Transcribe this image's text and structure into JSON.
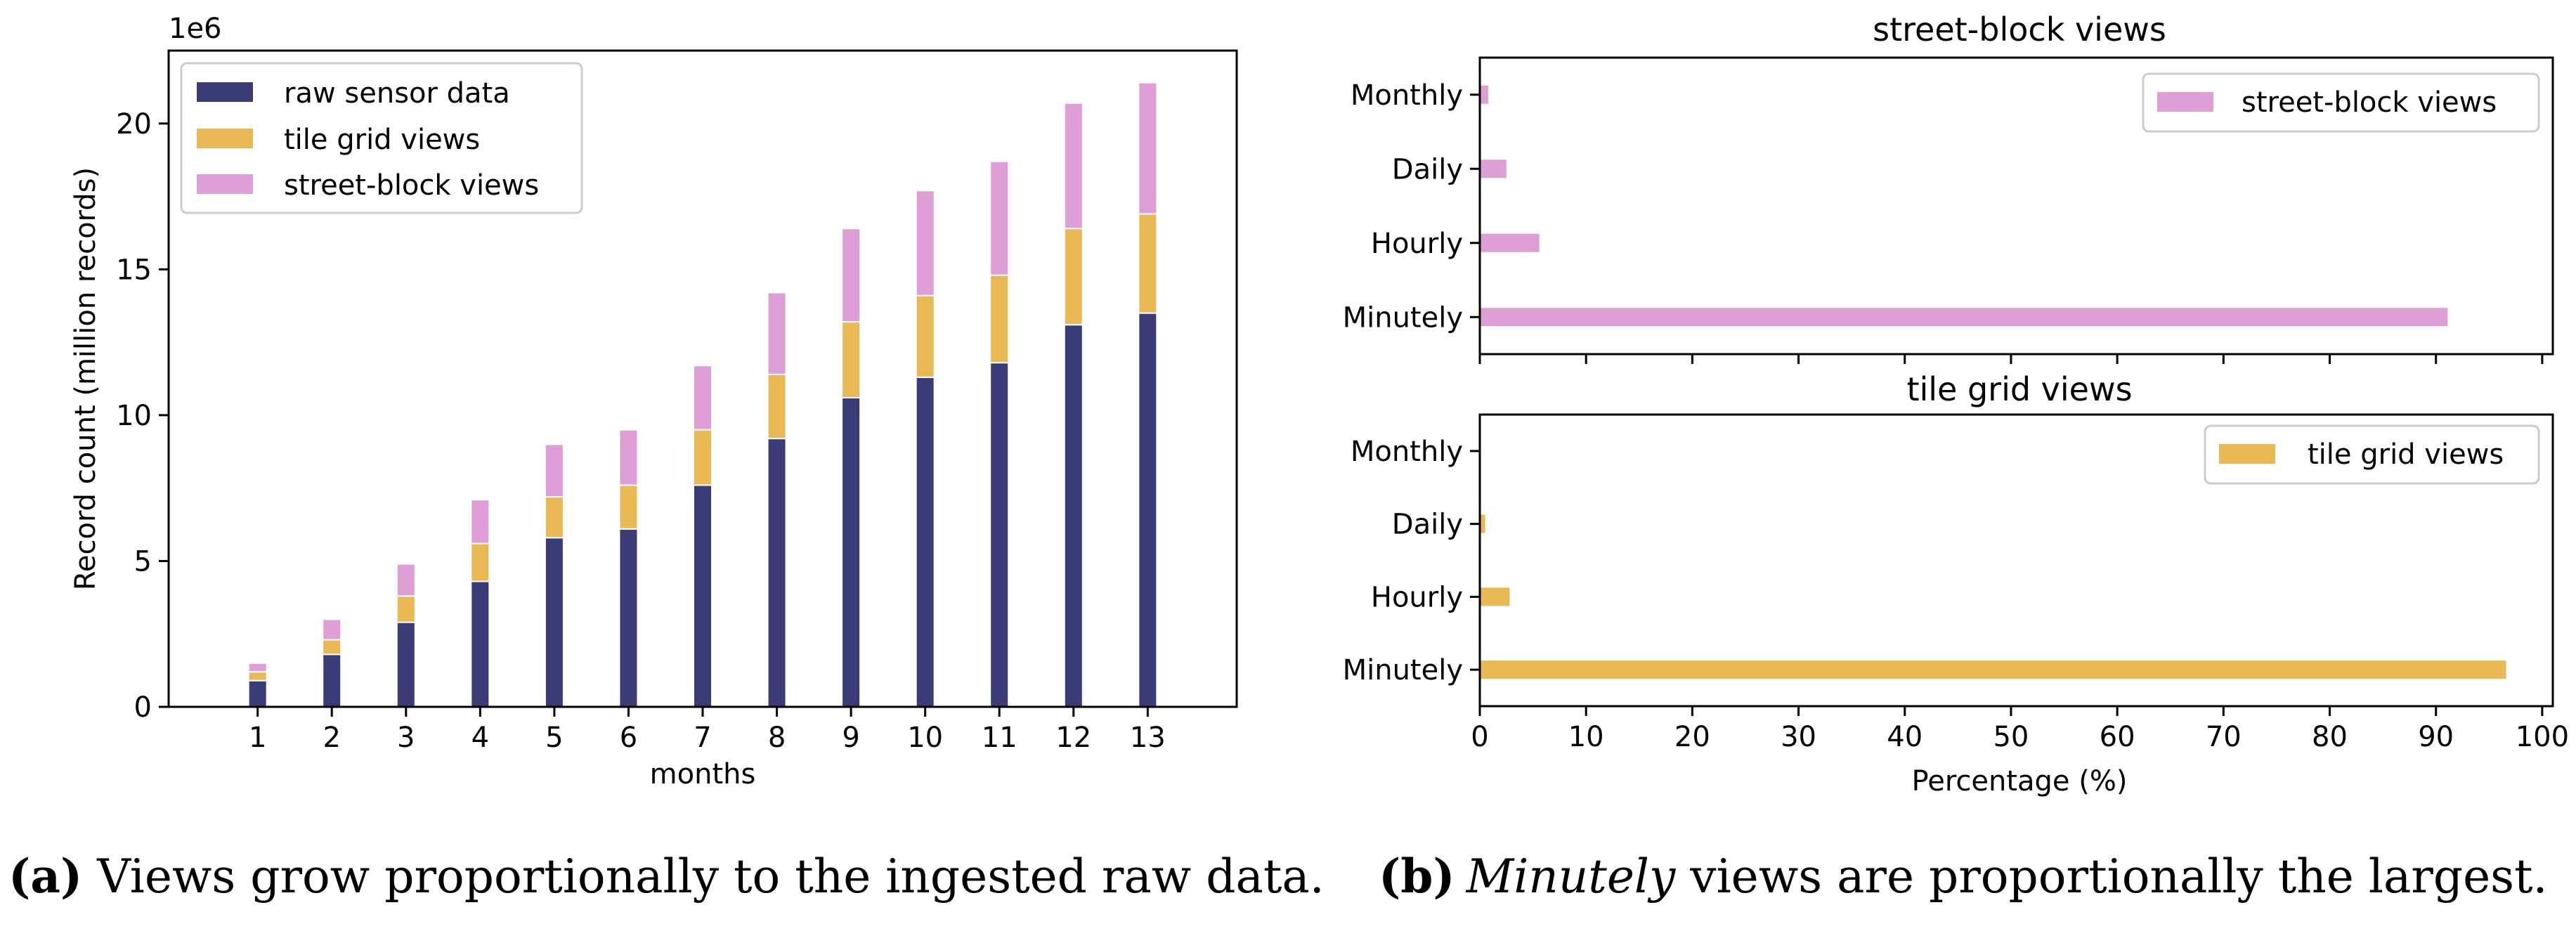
{
  "chart_data": [
    {
      "type": "bar",
      "stacked": true,
      "title": "",
      "xlabel": "months",
      "ylabel": "Record count (million records)",
      "y_offset_label": "1e6",
      "ylim": [
        0,
        22.5
      ],
      "yticks": [
        0,
        5,
        10,
        15,
        20
      ],
      "categories": [
        "1",
        "2",
        "3",
        "4",
        "5",
        "6",
        "7",
        "8",
        "9",
        "10",
        "11",
        "12",
        "13"
      ],
      "legend_position": "upper-left",
      "series": [
        {
          "name": "raw sensor data",
          "color": "#3b3b75",
          "values": [
            0.9,
            1.8,
            2.9,
            4.3,
            5.8,
            6.1,
            7.6,
            9.2,
            10.6,
            11.3,
            11.8,
            13.1,
            13.5
          ]
        },
        {
          "name": "tile grid views",
          "color": "#e8b955",
          "values": [
            0.3,
            0.5,
            0.9,
            1.3,
            1.4,
            1.5,
            1.9,
            2.2,
            2.6,
            2.8,
            3.0,
            3.3,
            3.4
          ]
        },
        {
          "name": "street-block views",
          "color": "#dd9fd6",
          "values": [
            0.3,
            0.7,
            1.1,
            1.5,
            1.8,
            1.9,
            2.2,
            2.8,
            3.2,
            3.6,
            3.9,
            4.3,
            4.5
          ]
        }
      ],
      "caption_bold": "(a)",
      "caption_text": " Views grow proportionally to the ingested raw data."
    },
    {
      "type": "bar",
      "orientation": "horizontal",
      "title": "street-block views",
      "xlabel": "",
      "xlim": [
        0,
        101
      ],
      "categories": [
        "Monthly",
        "Daily",
        "Hourly",
        "Minutely"
      ],
      "series": [
        {
          "name": "street-block views",
          "color": "#dd9fd6",
          "values": [
            0.8,
            2.5,
            5.6,
            91.1
          ]
        }
      ],
      "legend_position": "upper-right"
    },
    {
      "type": "bar",
      "orientation": "horizontal",
      "title": "tile grid views",
      "xlabel": "Percentage (%)",
      "xlim": [
        0,
        101
      ],
      "xticks": [
        0,
        10,
        20,
        30,
        40,
        50,
        60,
        70,
        80,
        90,
        100
      ],
      "categories": [
        "Monthly",
        "Daily",
        "Hourly",
        "Minutely"
      ],
      "series": [
        {
          "name": "tile grid views",
          "color": "#e8b955",
          "values": [
            0.1,
            0.5,
            2.8,
            96.6
          ]
        }
      ],
      "legend_position": "upper-right",
      "caption_bold": "(b)",
      "caption_italic": "Minutely",
      "caption_text": " views are proportionally the largest."
    }
  ]
}
